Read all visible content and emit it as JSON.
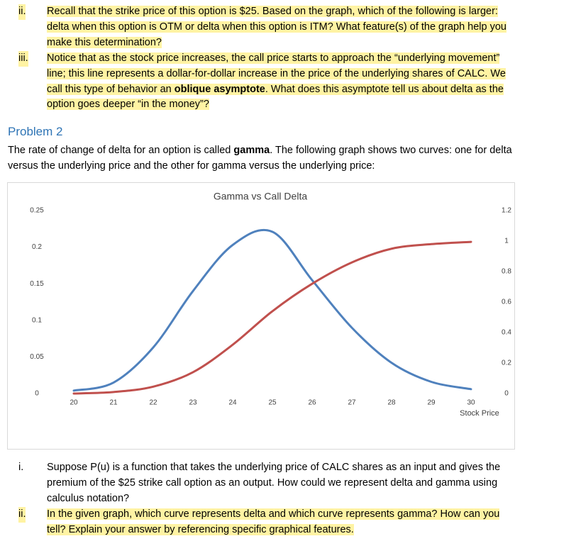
{
  "top_items": [
    {
      "marker": "ii.",
      "parts": [
        {
          "text": "Recall that the strike price of this option is $25.  Based on the graph, which of the following is larger: delta when this option is OTM or delta when this option is ITM?  What feature(s) of the graph help you make this determination?"
        }
      ]
    },
    {
      "marker": "iii.",
      "parts": [
        {
          "text": "Notice that as the stock price increases, the call price starts to approach the “underlying movement” line; this line represents a dollar-for-dollar increase in the price of the underlying shares of CALC.  We call this type of behavior an "
        },
        {
          "text": "oblique asymptote",
          "bold": true
        },
        {
          "text": ". What does this asymptote tell us about delta as the option goes deeper “in the money”?"
        }
      ]
    }
  ],
  "heading": "Problem 2",
  "intro": [
    {
      "text": "The rate of change of delta for an option is called "
    },
    {
      "text": "gamma",
      "bold": true
    },
    {
      "text": ".  The following graph shows two curves: one for delta versus the underlying price and the other for gamma versus the underlying price:"
    }
  ],
  "chart_data": {
    "type": "line",
    "title": "Gamma vs Call Delta",
    "x_label": "Stock Price",
    "x": [
      20,
      21,
      22,
      23,
      24,
      25,
      26,
      27,
      28,
      29,
      30
    ],
    "xlim": [
      20,
      30
    ],
    "xticks": [
      20,
      21,
      22,
      23,
      24,
      25,
      26,
      27,
      28,
      29,
      30
    ],
    "ylim": [
      0,
      0.25
    ],
    "yticks": [
      0,
      0.05,
      0.1,
      0.15,
      0.2,
      0.25
    ],
    "y2lim": [
      0,
      1.2
    ],
    "y2ticks": [
      0,
      0.2,
      0.4,
      0.6,
      0.8,
      1,
      1.2
    ],
    "series": [
      {
        "color": "#4f81bd",
        "values": [
          0.004,
          0.015,
          0.063,
          0.14,
          0.203,
          0.221,
          0.155,
          0.09,
          0.042,
          0.016,
          0.006
        ]
      },
      {
        "color": "#c0504d",
        "axis": "y2",
        "values": [
          0,
          0.01,
          0.045,
          0.14,
          0.32,
          0.54,
          0.72,
          0.86,
          0.95,
          0.98,
          0.995
        ]
      }
    ]
  },
  "bottom_items": [
    {
      "marker": "i.",
      "text": "Suppose P(u) is a function that takes the underlying price of CALC shares as an input and gives the premium of the $25 strike call option as an output. How could we represent delta and gamma using calculus notation?",
      "highlight": false
    },
    {
      "marker": "ii.",
      "text": "In the given graph, which curve represents delta and which curve represents gamma?  How can you tell?  Explain your answer by referencing specific graphical features.",
      "highlight": true
    }
  ]
}
